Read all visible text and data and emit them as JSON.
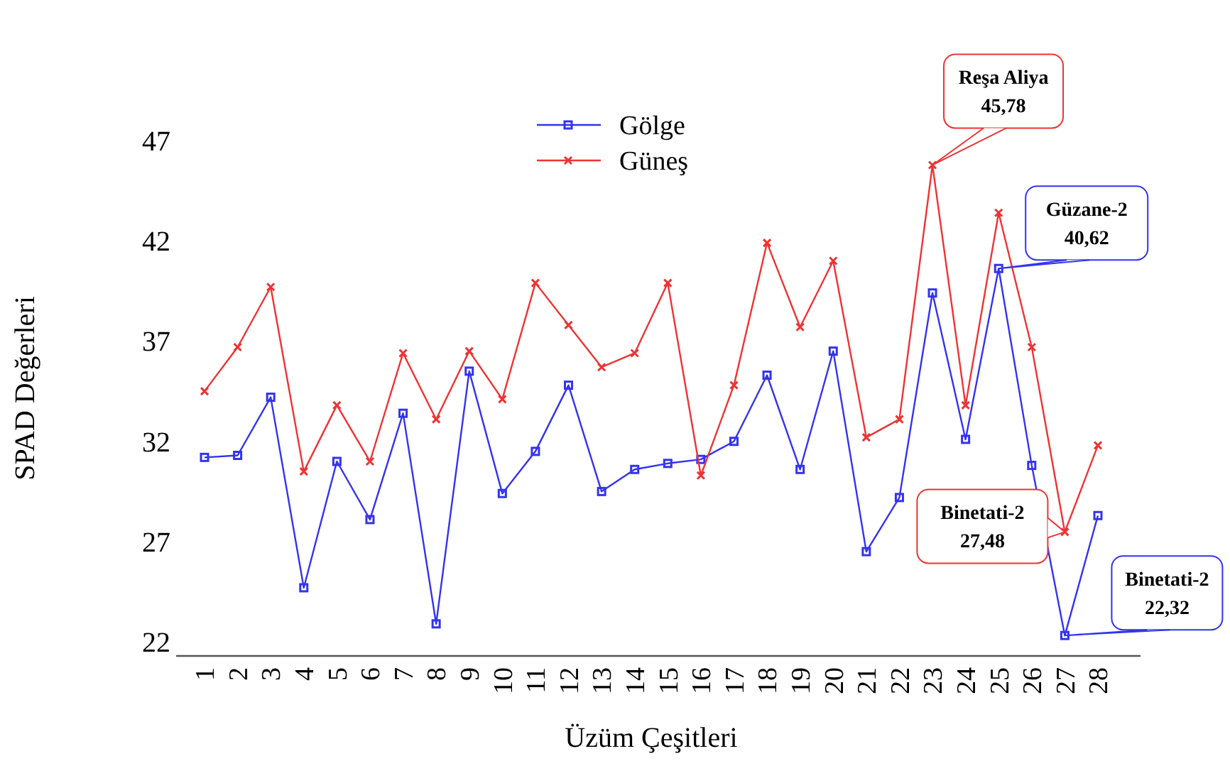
{
  "chart_data": {
    "type": "line",
    "xlabel": "Üzüm Çeşitleri",
    "ylabel": "SPAD Değerleri",
    "categories": [
      "1",
      "2",
      "3",
      "4",
      "5",
      "6",
      "7",
      "8",
      "9",
      "10",
      "11",
      "12",
      "13",
      "14",
      "15",
      "16",
      "17",
      "18",
      "19",
      "20",
      "21",
      "22",
      "23",
      "24",
      "25",
      "26",
      "27",
      "28"
    ],
    "series": [
      {
        "name": "Gölge",
        "color": "#3333ee",
        "marker": "square",
        "values": [
          31.2,
          31.3,
          34.2,
          24.7,
          31.0,
          28.1,
          33.4,
          22.9,
          35.5,
          29.4,
          31.5,
          34.8,
          29.5,
          30.6,
          30.9,
          31.1,
          32.0,
          35.3,
          30.6,
          36.5,
          26.5,
          29.2,
          39.4,
          32.1,
          40.62,
          30.8,
          22.32,
          28.3
        ]
      },
      {
        "name": "Güneş",
        "color": "#ee3333",
        "marker": "cross",
        "values": [
          34.5,
          36.7,
          39.7,
          30.5,
          33.8,
          31.0,
          36.4,
          33.1,
          36.5,
          34.1,
          39.9,
          37.8,
          35.7,
          36.4,
          39.9,
          30.3,
          34.8,
          41.9,
          37.7,
          41.0,
          32.2,
          33.1,
          45.78,
          33.8,
          43.4,
          36.7,
          27.48,
          31.8
        ]
      }
    ],
    "ylim": [
      21.3,
      47
    ],
    "yticks": [
      22,
      27,
      32,
      37,
      42,
      47
    ],
    "grid": false,
    "legend": "top",
    "line_style": "solid",
    "annotations": [
      {
        "text": "Reşa Aliya\n45,78",
        "x": "23",
        "y": 45.78
      },
      {
        "text": "Güzane-2\n40,62",
        "x": "25",
        "y": 40.62
      },
      {
        "text": "Binetati-2\n27,48",
        "x": "27",
        "y": 27.48
      },
      {
        "text": "Binetati-2\n22,32",
        "x": "27",
        "y": 22.32
      }
    ]
  }
}
